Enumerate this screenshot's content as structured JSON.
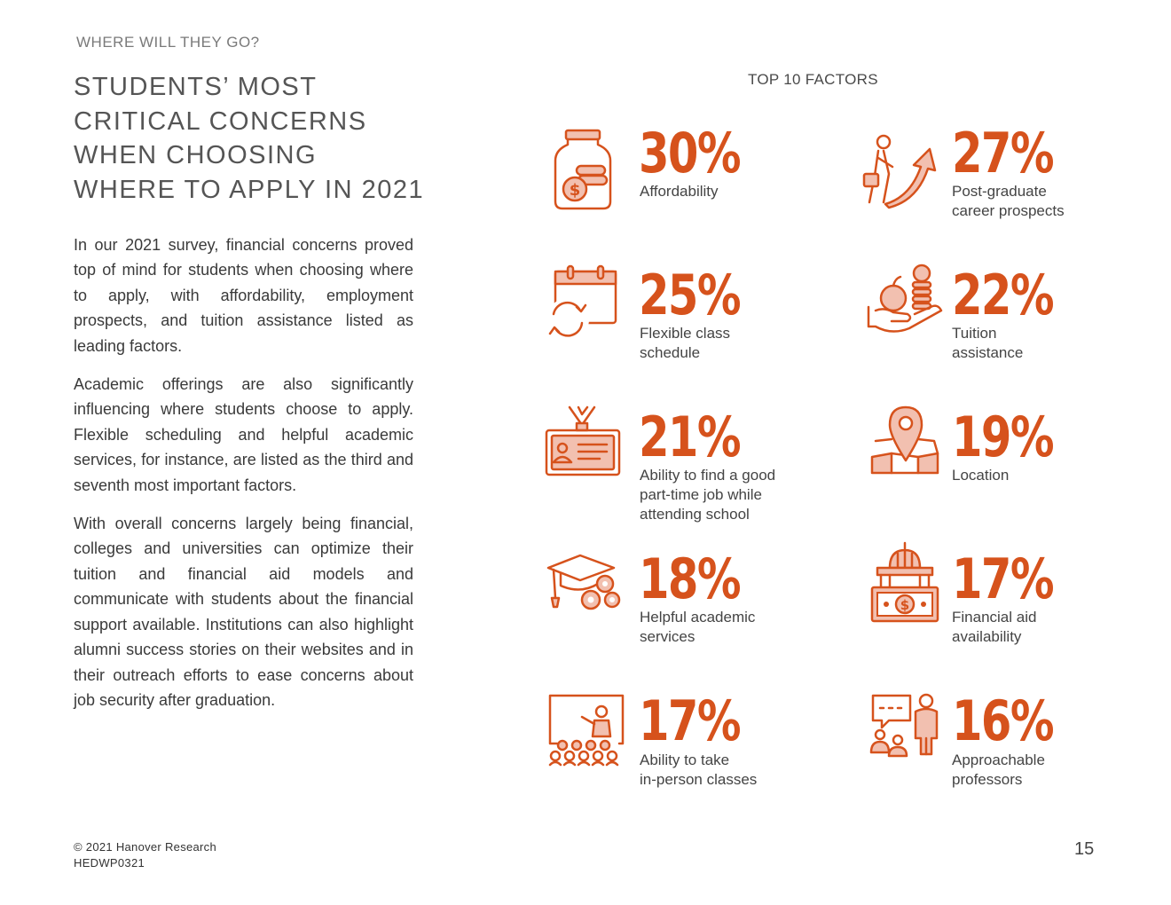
{
  "section": "WHERE WILL THEY GO?",
  "heading": [
    "STUDENTS’ MOST",
    "CRITICAL CONCERNS",
    "WHEN CHOOSING",
    "WHERE TO APPLY IN 2021"
  ],
  "paragraphs": [
    "In our 2021 survey, financial concerns proved top of mind for students when choosing where to apply, with affordability, employment prospects, and tuition assistance listed as leading factors.",
    "Academic offerings are also significantly influencing where students choose to apply. Flexible scheduling and helpful academic services, for instance, are listed as the third and seventh most important factors.",
    "With overall concerns largely being financial, colleges and universities can optimize their tuition and financial aid models and communicate with students about the financial support available. Institutions can also highlight alumni success stories on their websites and in their outreach efforts to ease concerns about job security after graduation."
  ],
  "factors_title": "TOP 10 FACTORS",
  "factors": [
    {
      "pct": "30%",
      "label": [
        "Affordability"
      ],
      "icon": "money-jar-icon"
    },
    {
      "pct": "27%",
      "label": [
        "Post-graduate",
        "career prospects"
      ],
      "icon": "career-growth-icon"
    },
    {
      "pct": "25%",
      "label": [
        "Flexible class",
        "schedule"
      ],
      "icon": "calendar-cycle-icon"
    },
    {
      "pct": "22%",
      "label": [
        "Tuition",
        "assistance"
      ],
      "icon": "hand-apple-coins-icon"
    },
    {
      "pct": "21%",
      "label": [
        "Ability to find a good",
        "part-time job while",
        "attending school"
      ],
      "icon": "id-badge-icon"
    },
    {
      "pct": "19%",
      "label": [
        "Location"
      ],
      "icon": "map-pin-icon"
    },
    {
      "pct": "18%",
      "label": [
        "Helpful academic",
        "services"
      ],
      "icon": "graduation-cap-gears-icon"
    },
    {
      "pct": "17%",
      "label": [
        "Financial aid",
        "availability"
      ],
      "icon": "capitol-money-icon"
    },
    {
      "pct": "17%",
      "label": [
        "Ability to take",
        "in-person classes"
      ],
      "icon": "classroom-icon"
    },
    {
      "pct": "16%",
      "label": [
        "Approachable",
        "professors"
      ],
      "icon": "professor-icon"
    }
  ],
  "footer": {
    "copyright": "© 2021 Hanover Research",
    "code": "HEDWP0321"
  },
  "page_number": "15",
  "colors": {
    "accent": "#d6521c",
    "accent_light": "#f2c0b0"
  }
}
